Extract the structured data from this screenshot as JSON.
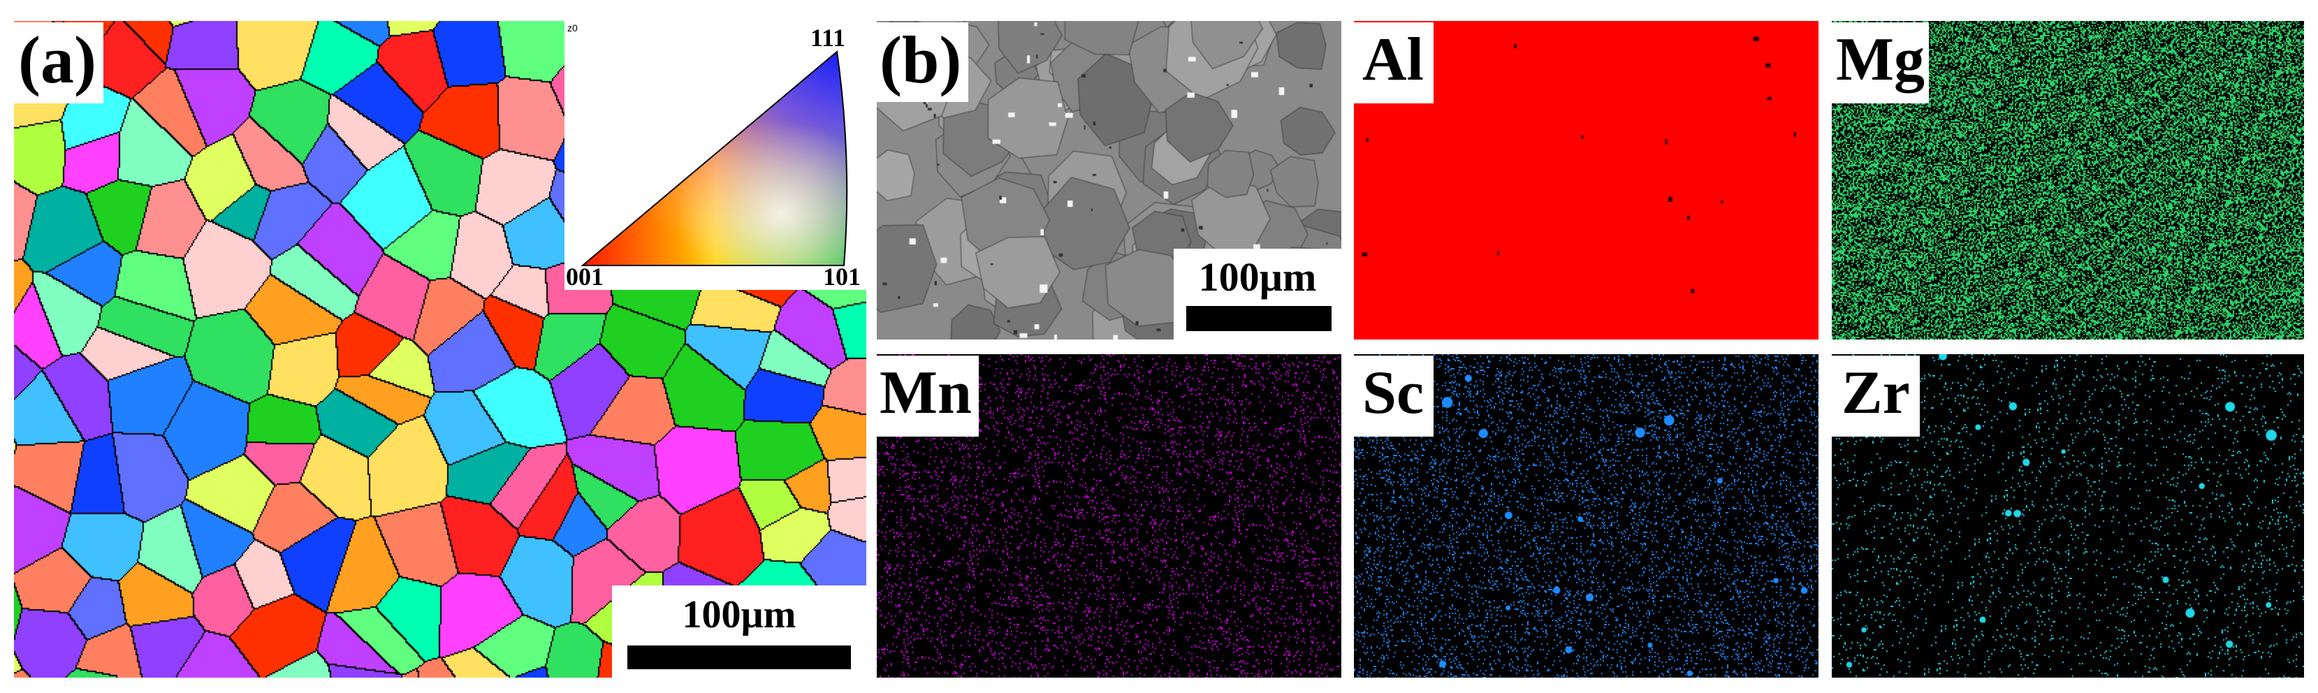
{
  "panel_a": {
    "label": "(a)",
    "ipf_key": {
      "top": "111",
      "left": "001",
      "right": "101",
      "corner_tag": "z0"
    },
    "scale_bar": "100µm"
  },
  "panel_b": {
    "label": "(b)",
    "scale_bar": "100µm",
    "maps": [
      {
        "element": "Al",
        "color": "#ff0000"
      },
      {
        "element": "Mg",
        "color": "#2bd16a"
      },
      {
        "element": "Mn",
        "color": "#d000e0"
      },
      {
        "element": "Sc",
        "color": "#1e8cff"
      },
      {
        "element": "Zr",
        "color": "#20d8e8"
      }
    ]
  }
}
